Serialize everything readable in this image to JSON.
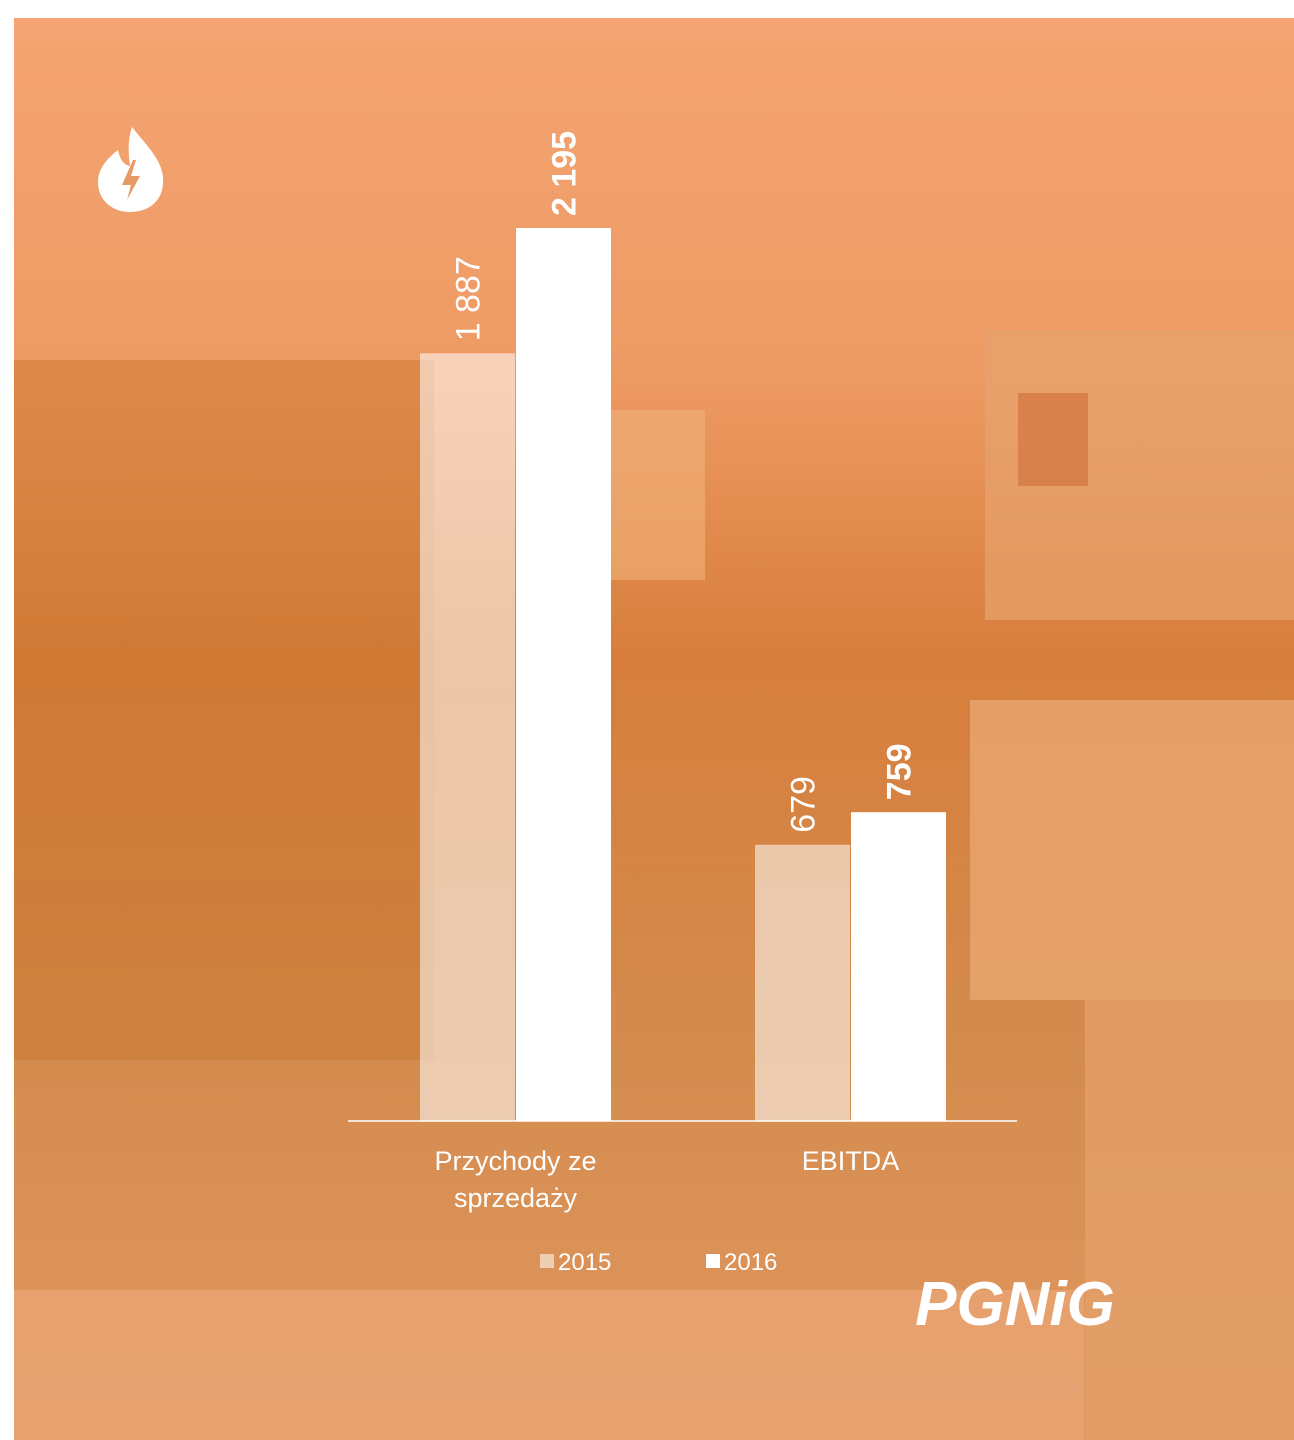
{
  "chart_data": {
    "type": "bar",
    "categories": [
      "Przychody ze sprzedaży",
      "EBITDA"
    ],
    "series": [
      {
        "name": "2015",
        "color": "rgba(255,255,255,0.55)",
        "values": [
          1887,
          679
        ],
        "value_labels": [
          "1 887",
          "679"
        ]
      },
      {
        "name": "2016",
        "color": "#ffffff",
        "values": [
          2195,
          759
        ],
        "value_labels": [
          "2 195",
          "759"
        ]
      }
    ],
    "logo": "PGNiG"
  }
}
